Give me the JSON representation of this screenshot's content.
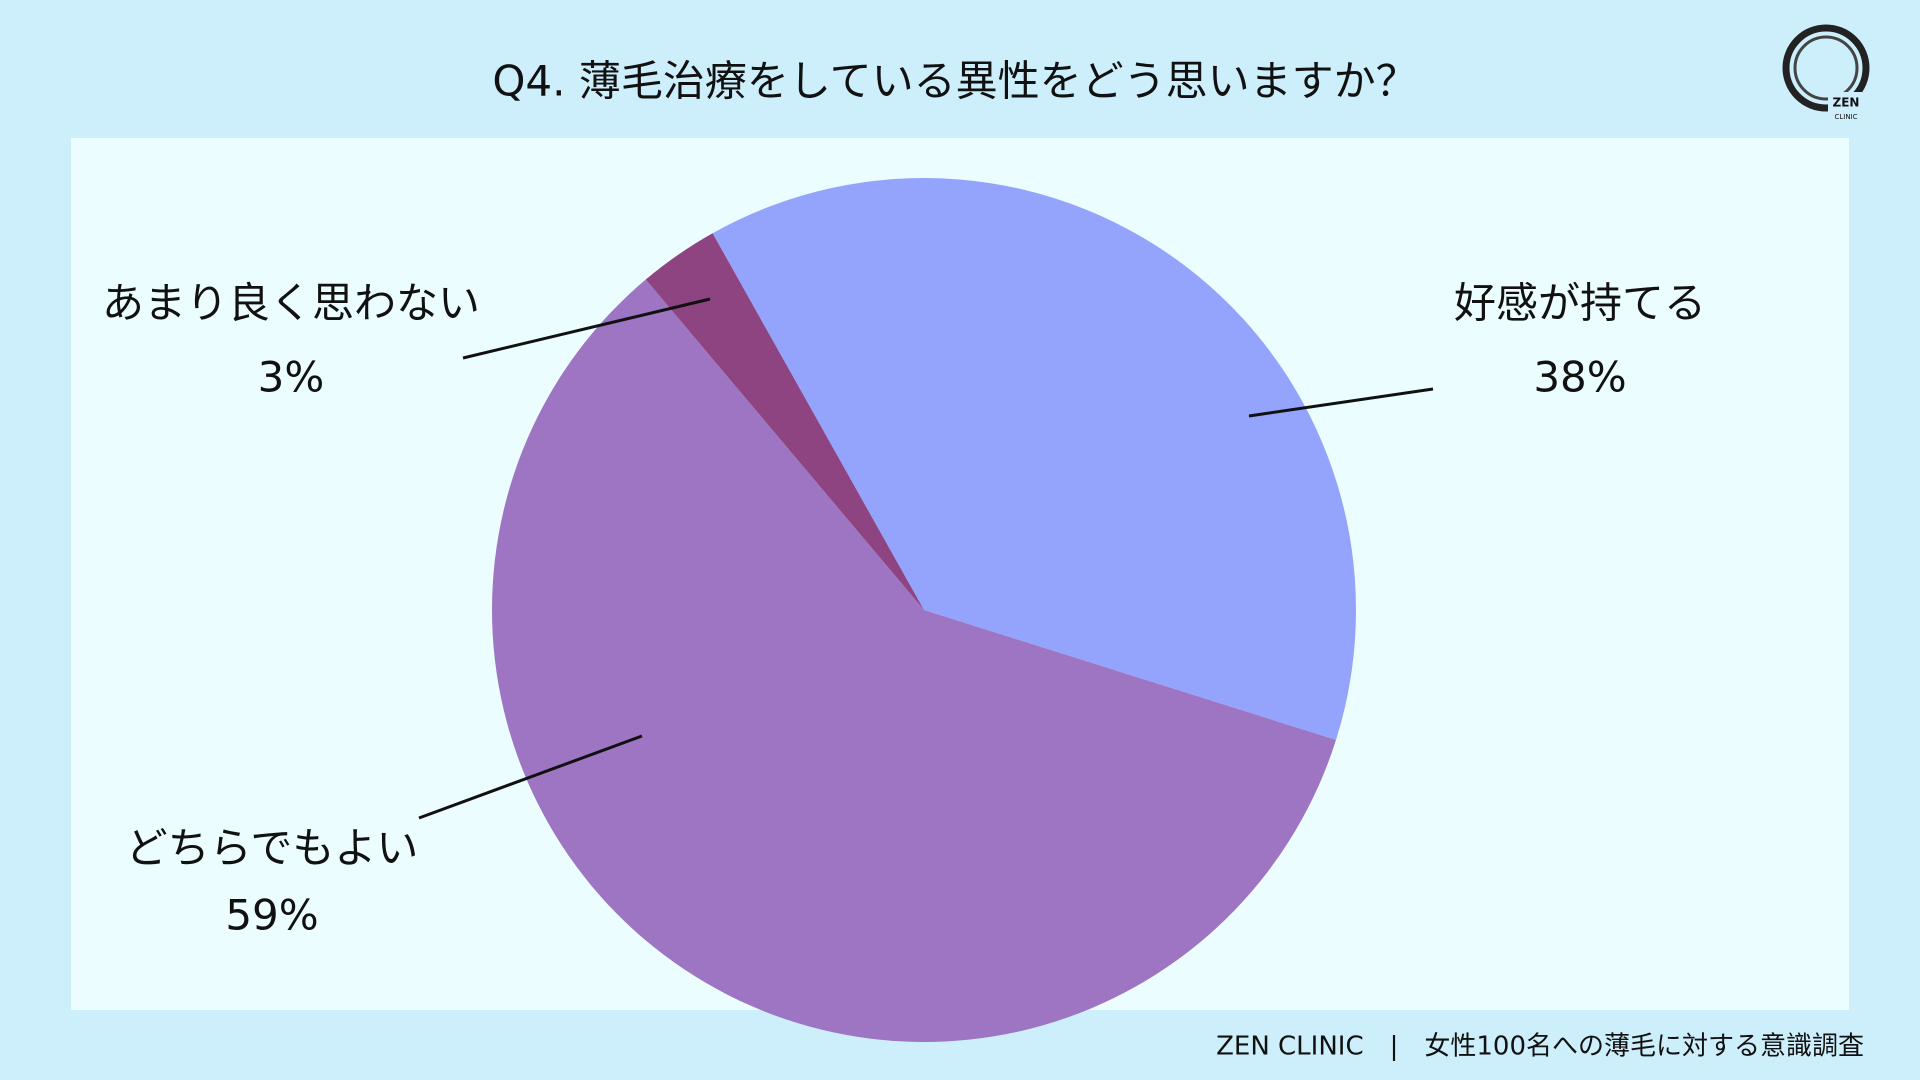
{
  "chart_data": {
    "type": "pie",
    "title": "Q4. 薄毛治療をしている異性をどう思いますか？",
    "categories": [
      "好感が持てる",
      "どちらでもよい",
      "あまり良く思わない"
    ],
    "values": [
      38,
      59,
      3
    ],
    "value_labels": [
      "38%",
      "59%",
      "3%"
    ],
    "colors": [
      "#94a4fd",
      "#9d75c3",
      "#8e4480"
    ]
  },
  "footer": {
    "source": "ZEN CLINIC　|　女性100名への薄毛に対する意識調査"
  },
  "logo": {
    "name": "ZEN",
    "sub": "CLINIC"
  }
}
